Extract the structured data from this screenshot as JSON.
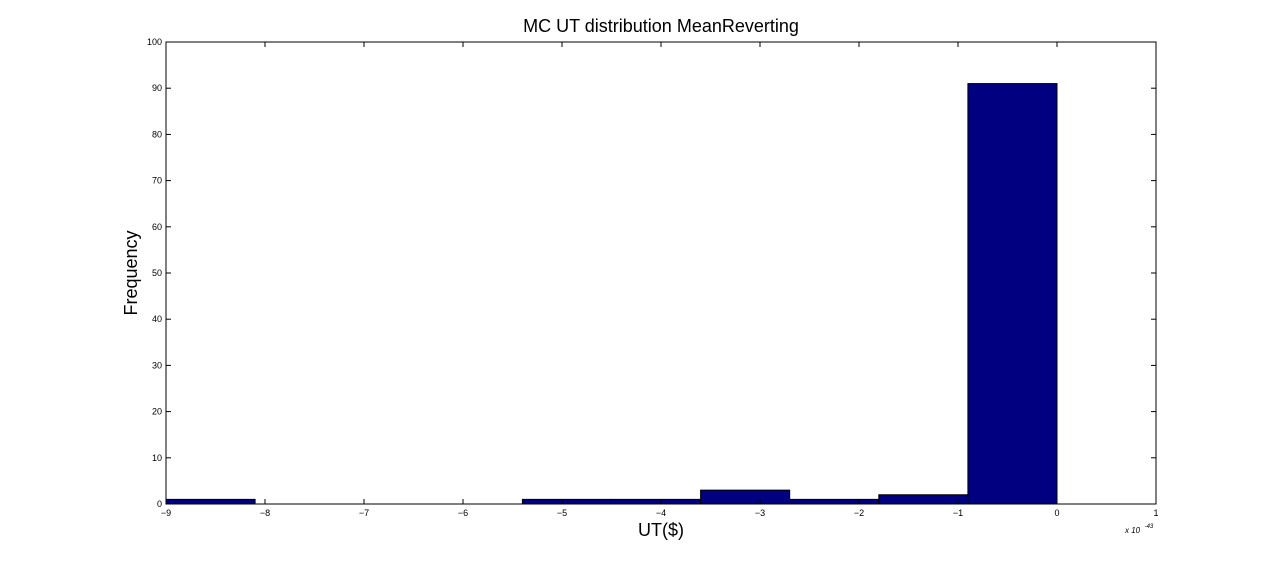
{
  "chart_data": {
    "type": "bar",
    "title": "MC UT distribution MeanReverting",
    "xlabel": "UT($)",
    "ylabel": "Frequency",
    "x_exponent_base": "x 10",
    "x_exponent_power": "-43",
    "xlim": [
      -9,
      1
    ],
    "ylim": [
      0,
      100
    ],
    "xticks": [
      -9,
      -8,
      -7,
      -6,
      -5,
      -4,
      -3,
      -2,
      -1,
      0,
      1
    ],
    "yticks": [
      0,
      10,
      20,
      30,
      40,
      50,
      60,
      70,
      80,
      90,
      100
    ],
    "xtick_labels": [
      "−9",
      "−8",
      "−7",
      "−6",
      "−5",
      "−4",
      "−3",
      "−2",
      "−1",
      "0",
      "1"
    ],
    "ytick_labels": [
      "0",
      "10",
      "20",
      "30",
      "40",
      "50",
      "60",
      "70",
      "80",
      "90",
      "100"
    ],
    "bin_edges": [
      -9.0,
      -8.1,
      -7.2,
      -6.3,
      -5.4,
      -4.5,
      -3.6,
      -2.7,
      -1.8,
      -0.9,
      0.0
    ],
    "values": [
      1,
      0,
      0,
      0,
      1,
      1,
      3,
      1,
      2,
      91
    ],
    "bar_color": "#000080",
    "box": true,
    "grid": false
  }
}
